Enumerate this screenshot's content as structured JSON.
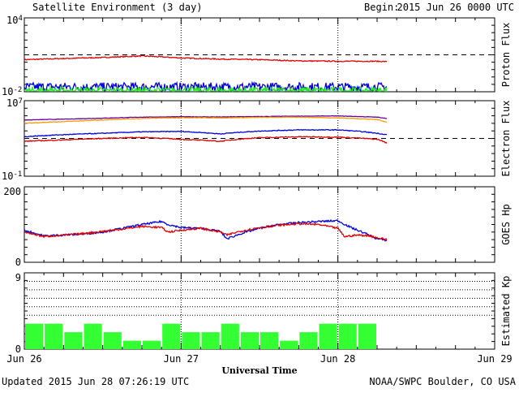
{
  "header": {
    "title": "Satellite Environment (3 day)",
    "begin_label": "Begin:",
    "begin_value": "2015 Jun 26 0000 UTC"
  },
  "footer": {
    "updated": "Updated 2015 Jun 28 07:26:19 UTC",
    "credit": "NOAA/SWPC Boulder, CO USA",
    "xlabel": "Universal Time"
  },
  "colors": {
    "red": "#dd0000",
    "blue": "#0000dd",
    "green": "#22ee22",
    "orange": "#ff9900",
    "purple": "#660099",
    "kp_bar": "#33ff33"
  },
  "chart_data": [
    {
      "type": "line",
      "name": "proton-flux",
      "ylabel": "Proton Flux",
      "yscale": "log",
      "ylim": [
        0.01,
        10000
      ],
      "y_tick_labels": [
        {
          "base": "10",
          "exp": "4"
        },
        {
          "base": "10",
          "exp": "-2"
        }
      ],
      "x_range_hours": [
        0,
        72
      ],
      "threshold": 10,
      "series": [
        {
          "color": "red",
          "x": [
            0,
            6,
            12,
            18,
            24,
            30,
            36,
            42,
            48,
            54,
            55.5
          ],
          "y": [
            4,
            5,
            6,
            8,
            5.5,
            4.5,
            4,
            3.2,
            3,
            3,
            2.8
          ],
          "noise": 0.04
        },
        {
          "color": "blue",
          "x": [
            0,
            55.5
          ],
          "y": [
            0.025,
            0.025
          ],
          "noise": 0.35
        },
        {
          "color": "green",
          "x": [
            0,
            55.5
          ],
          "y": [
            0.012,
            0.012
          ],
          "noise": 0.3
        }
      ]
    },
    {
      "type": "line",
      "name": "electron-flux",
      "ylabel": "Electron Flux",
      "yscale": "log",
      "ylim": [
        0.1,
        10000000
      ],
      "y_tick_labels": [
        {
          "base": "10",
          "exp": "7"
        },
        {
          "base": "10",
          "exp": "-1"
        }
      ],
      "x_range_hours": [
        0,
        72
      ],
      "threshold": 1000,
      "series": [
        {
          "color": "purple",
          "x": [
            0,
            6,
            12,
            18,
            24,
            30,
            36,
            42,
            48,
            54,
            55.5
          ],
          "y": [
            90000,
            110000,
            140000,
            180000,
            200000,
            190000,
            210000,
            230000,
            240000,
            180000,
            130000
          ],
          "noise": 0.02
        },
        {
          "color": "orange",
          "x": [
            0,
            6,
            12,
            18,
            24,
            30,
            36,
            42,
            48,
            54,
            55.5
          ],
          "y": [
            40000,
            60000,
            90000,
            130000,
            160000,
            150000,
            170000,
            180000,
            150000,
            100000,
            50000
          ],
          "noise": 0.03
        },
        {
          "color": "blue",
          "x": [
            0,
            6,
            12,
            18,
            24,
            30,
            36,
            42,
            48,
            54,
            55.5
          ],
          "y": [
            1500,
            2500,
            3500,
            5000,
            5500,
            3000,
            6000,
            8000,
            8000,
            3500,
            2500
          ],
          "noise": 0.04
        },
        {
          "color": "red",
          "x": [
            0,
            6,
            12,
            18,
            24,
            30,
            36,
            42,
            48,
            54,
            55.5
          ],
          "y": [
            500,
            700,
            1000,
            1300,
            800,
            500,
            1200,
            1500,
            1400,
            800,
            300
          ],
          "noise": 0.05
        }
      ]
    },
    {
      "type": "line",
      "name": "goes-hp",
      "ylabel": "GOES Hp",
      "yscale": "linear",
      "ylim": [
        0,
        200
      ],
      "y_tick_labels": [
        "200",
        "0"
      ],
      "x_range_hours": [
        0,
        72
      ],
      "series": [
        {
          "color": "blue",
          "x": [
            0,
            3,
            6,
            9,
            12,
            15,
            18,
            21,
            22,
            24,
            27,
            30,
            31,
            33,
            36,
            39,
            42,
            45,
            48,
            50,
            52,
            54,
            55.5
          ],
          "y": [
            85,
            70,
            72,
            75,
            80,
            90,
            100,
            108,
            100,
            92,
            90,
            82,
            62,
            75,
            90,
            100,
            105,
            108,
            110,
            92,
            78,
            62,
            58
          ],
          "noise": 2.5
        },
        {
          "color": "red",
          "x": [
            0,
            3,
            6,
            9,
            12,
            15,
            18,
            21,
            22,
            24,
            27,
            30,
            31,
            33,
            36,
            39,
            42,
            45,
            48,
            49,
            51,
            53,
            54,
            55.5
          ],
          "y": [
            80,
            68,
            72,
            76,
            82,
            88,
            95,
            92,
            80,
            85,
            90,
            80,
            72,
            82,
            92,
            98,
            102,
            100,
            90,
            68,
            72,
            70,
            65,
            60
          ],
          "noise": 2.5
        }
      ]
    },
    {
      "type": "bar",
      "name": "estimated-kp",
      "ylabel": "Estimated Kp",
      "ylim": [
        0,
        9
      ],
      "y_tick_labels": [
        "9",
        "0"
      ],
      "x_range_hours": [
        0,
        72
      ],
      "bar_width_hours": 3,
      "gridlines": [
        4,
        5,
        6,
        7,
        8
      ],
      "values": [
        3,
        3,
        2,
        3,
        2,
        1,
        1,
        3,
        2,
        2,
        3,
        2,
        2,
        1,
        2,
        3,
        3,
        3
      ]
    }
  ],
  "x_axis": {
    "tick_labels": [
      "Jun 26",
      "Jun 27",
      "Jun 28",
      "Jun 29"
    ],
    "day_markers_hours": [
      24,
      48
    ]
  }
}
